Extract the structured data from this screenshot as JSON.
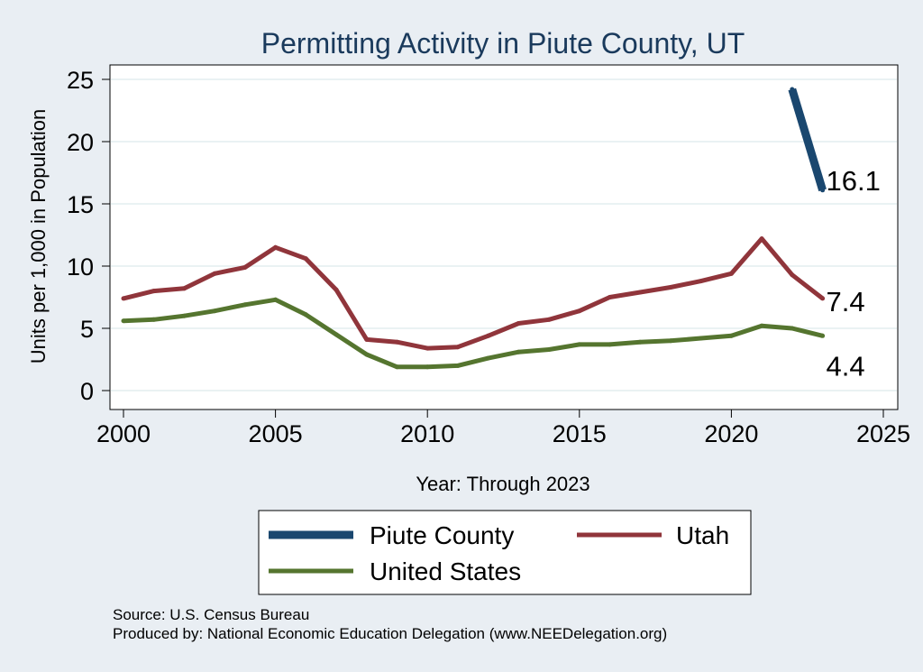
{
  "chart_data": {
    "type": "line",
    "title": "Permitting Activity in Piute County, UT",
    "xlabel": "Year: Through 2023",
    "ylabel": "Units per 1,000 in Population",
    "xlim": [
      2000,
      2025
    ],
    "ylim": [
      0,
      25
    ],
    "x_ticks": [
      2000,
      2005,
      2010,
      2015,
      2020,
      2025
    ],
    "y_ticks": [
      0,
      5,
      10,
      15,
      20,
      25
    ],
    "grid": true,
    "legend_position": "bottom",
    "series": [
      {
        "name": "Piute County",
        "color": "#1a476f",
        "x": [
          2022,
          2023
        ],
        "values": [
          24.2,
          16.1
        ],
        "end_label": "16.1"
      },
      {
        "name": "Utah",
        "color": "#90353b",
        "x": [
          2000,
          2001,
          2002,
          2003,
          2004,
          2005,
          2006,
          2007,
          2008,
          2009,
          2010,
          2011,
          2012,
          2013,
          2014,
          2015,
          2016,
          2017,
          2018,
          2019,
          2020,
          2021,
          2022,
          2023
        ],
        "values": [
          7.4,
          8.0,
          8.2,
          9.4,
          9.9,
          11.5,
          10.6,
          8.1,
          4.1,
          3.9,
          3.4,
          3.5,
          4.4,
          5.4,
          5.7,
          6.4,
          7.5,
          7.9,
          8.3,
          8.8,
          9.4,
          12.2,
          9.3,
          7.4
        ],
        "end_label": "7.4"
      },
      {
        "name": "United States",
        "color": "#55752f",
        "x": [
          2000,
          2001,
          2002,
          2003,
          2004,
          2005,
          2006,
          2007,
          2008,
          2009,
          2010,
          2011,
          2012,
          2013,
          2014,
          2015,
          2016,
          2017,
          2018,
          2019,
          2020,
          2021,
          2022,
          2023
        ],
        "values": [
          5.6,
          5.7,
          6.0,
          6.4,
          6.9,
          7.3,
          6.1,
          4.5,
          2.9,
          1.9,
          1.9,
          2.0,
          2.6,
          3.1,
          3.3,
          3.7,
          3.7,
          3.9,
          4.0,
          4.2,
          4.4,
          5.2,
          5.0,
          4.4
        ],
        "end_label": "4.4"
      }
    ],
    "source": "Source: U.S. Census Bureau",
    "producer": "Produced by: National Economic Education Delegation (www.NEEDelegation.org)"
  }
}
